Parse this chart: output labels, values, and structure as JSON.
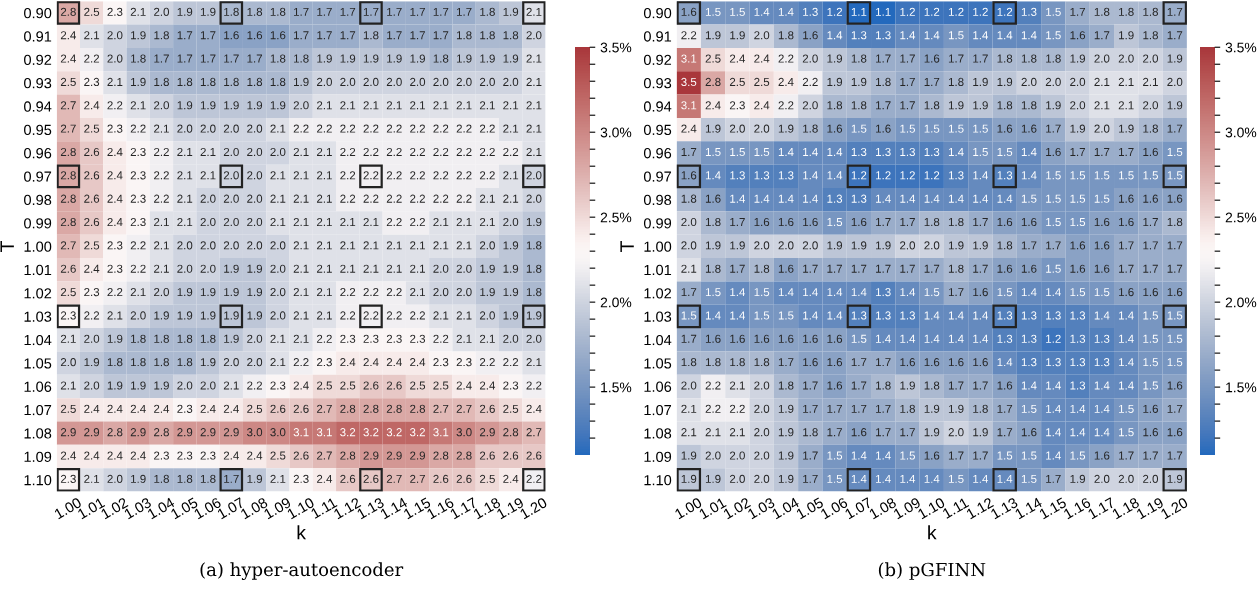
{
  "chart_data": [
    {
      "type": "heatmap",
      "xlabel": "k",
      "ylabel": "T",
      "annotations": [
        "(a) hyper-autoencoder"
      ],
      "data_labels": true,
      "categories": [
        "1.00",
        "1.01",
        "1.02",
        "1.03",
        "1.04",
        "1.05",
        "1.06",
        "1.07",
        "1.08",
        "1.09",
        "1.10",
        "1.11",
        "1.12",
        "1.13",
        "1.14",
        "1.15",
        "1.16",
        "1.17",
        "1.18",
        "1.19",
        "1.20"
      ],
      "y_categories": [
        "0.90",
        "0.91",
        "0.92",
        "0.93",
        "0.94",
        "0.95",
        "0.96",
        "0.97",
        "0.98",
        "0.99",
        "1.00",
        "1.01",
        "1.02",
        "1.03",
        "1.04",
        "1.05",
        "1.06",
        "1.07",
        "1.08",
        "1.09",
        "1.10"
      ],
      "clim": [
        1.1,
        3.5
      ],
      "cticks": [
        {
          "value": 1.2,
          "label": null
        },
        {
          "value": 1.3,
          "label": null
        },
        {
          "value": 1.4,
          "label": null
        },
        {
          "value": 1.5,
          "label": "1.5%"
        },
        {
          "value": 1.6,
          "label": null
        },
        {
          "value": 1.7,
          "label": null
        },
        {
          "value": 1.8,
          "label": null
        },
        {
          "value": 1.9,
          "label": null
        },
        {
          "value": 2.0,
          "label": "2.0%"
        },
        {
          "value": 2.1,
          "label": null
        },
        {
          "value": 2.2,
          "label": null
        },
        {
          "value": 2.3,
          "label": null
        },
        {
          "value": 2.4,
          "label": null
        },
        {
          "value": 2.5,
          "label": "2.5%"
        },
        {
          "value": 2.6,
          "label": null
        },
        {
          "value": 2.7,
          "label": null
        },
        {
          "value": 2.8,
          "label": null
        },
        {
          "value": 2.9,
          "label": null
        },
        {
          "value": 3.0,
          "label": "3.0%"
        },
        {
          "value": 3.1,
          "label": null
        },
        {
          "value": 3.2,
          "label": null
        },
        {
          "value": 3.3,
          "label": null
        },
        {
          "value": 3.4,
          "label": null
        },
        {
          "value": 3.5,
          "label": "3.5%"
        }
      ],
      "cells": [
        [
          2.8,
          2.5,
          2.3,
          2.1,
          2.0,
          1.9,
          1.9,
          1.8,
          1.8,
          1.8,
          1.7,
          1.7,
          1.7,
          1.7,
          1.7,
          1.7,
          1.7,
          1.7,
          1.8,
          1.9,
          2.1
        ],
        [
          2.4,
          2.1,
          2.0,
          1.9,
          1.8,
          1.7,
          1.7,
          1.6,
          1.6,
          1.6,
          1.7,
          1.7,
          1.7,
          1.8,
          1.7,
          1.7,
          1.7,
          1.8,
          1.8,
          1.8,
          2.0
        ],
        [
          2.4,
          2.2,
          2.0,
          1.8,
          1.7,
          1.7,
          1.7,
          1.7,
          1.7,
          1.8,
          1.8,
          1.9,
          1.9,
          1.9,
          1.9,
          1.9,
          1.8,
          1.9,
          1.9,
          1.9,
          2.1
        ],
        [
          2.5,
          2.3,
          2.1,
          1.9,
          1.8,
          1.8,
          1.8,
          1.8,
          1.8,
          1.8,
          1.9,
          2.0,
          2.0,
          2.0,
          2.0,
          2.0,
          2.0,
          2.0,
          2.0,
          2.0,
          2.1
        ],
        [
          2.7,
          2.4,
          2.2,
          2.1,
          2.0,
          1.9,
          1.9,
          1.9,
          1.9,
          1.9,
          2.0,
          2.1,
          2.1,
          2.1,
          2.1,
          2.1,
          2.1,
          2.1,
          2.1,
          2.1,
          2.1
        ],
        [
          2.7,
          2.5,
          2.3,
          2.2,
          2.1,
          2.0,
          2.0,
          2.0,
          2.0,
          2.1,
          2.2,
          2.2,
          2.2,
          2.2,
          2.2,
          2.2,
          2.2,
          2.2,
          2.2,
          2.1,
          2.1
        ],
        [
          2.8,
          2.6,
          2.4,
          2.3,
          2.2,
          2.1,
          2.1,
          2.0,
          2.0,
          2.0,
          2.1,
          2.1,
          2.2,
          2.2,
          2.2,
          2.2,
          2.2,
          2.2,
          2.2,
          2.2,
          2.1
        ],
        [
          2.8,
          2.6,
          2.4,
          2.3,
          2.2,
          2.1,
          2.1,
          2.0,
          2.0,
          2.1,
          2.1,
          2.1,
          2.2,
          2.2,
          2.2,
          2.2,
          2.2,
          2.2,
          2.2,
          2.1,
          2.0
        ],
        [
          2.8,
          2.6,
          2.4,
          2.3,
          2.2,
          2.1,
          2.0,
          2.0,
          2.0,
          2.1,
          2.1,
          2.1,
          2.2,
          2.2,
          2.2,
          2.2,
          2.2,
          2.2,
          2.1,
          2.1,
          2.0
        ],
        [
          2.8,
          2.6,
          2.4,
          2.3,
          2.1,
          2.1,
          2.0,
          2.0,
          2.0,
          2.1,
          2.1,
          2.1,
          2.1,
          2.1,
          2.2,
          2.2,
          2.1,
          2.1,
          2.1,
          2.0,
          1.9
        ],
        [
          2.7,
          2.5,
          2.3,
          2.2,
          2.1,
          2.0,
          2.0,
          2.0,
          2.0,
          2.0,
          2.1,
          2.1,
          2.1,
          2.1,
          2.1,
          2.1,
          2.1,
          2.1,
          2.0,
          1.9,
          1.8
        ],
        [
          2.6,
          2.4,
          2.3,
          2.2,
          2.1,
          2.0,
          2.0,
          1.9,
          1.9,
          2.0,
          2.1,
          2.1,
          2.1,
          2.1,
          2.1,
          2.1,
          2.0,
          2.0,
          1.9,
          1.9,
          1.8
        ],
        [
          2.5,
          2.3,
          2.2,
          2.1,
          2.0,
          1.9,
          1.9,
          1.9,
          1.9,
          2.0,
          2.1,
          2.1,
          2.2,
          2.2,
          2.2,
          2.1,
          2.0,
          2.0,
          1.9,
          1.9,
          1.8
        ],
        [
          2.3,
          2.2,
          2.1,
          2.0,
          1.9,
          1.9,
          1.9,
          1.9,
          1.9,
          2.0,
          2.1,
          2.1,
          2.2,
          2.2,
          2.2,
          2.2,
          2.1,
          2.1,
          2.0,
          1.9,
          1.9
        ],
        [
          2.1,
          2.0,
          1.9,
          1.8,
          1.8,
          1.8,
          1.8,
          1.9,
          2.0,
          2.1,
          2.1,
          2.2,
          2.3,
          2.3,
          2.3,
          2.3,
          2.2,
          2.1,
          2.1,
          2.0,
          2.0
        ],
        [
          2.0,
          1.9,
          1.8,
          1.8,
          1.8,
          1.8,
          1.9,
          2.0,
          2.0,
          2.1,
          2.2,
          2.3,
          2.4,
          2.4,
          2.4,
          2.4,
          2.3,
          2.3,
          2.2,
          2.2,
          2.1
        ],
        [
          2.1,
          2.0,
          1.9,
          1.9,
          1.9,
          2.0,
          2.0,
          2.1,
          2.2,
          2.3,
          2.4,
          2.5,
          2.5,
          2.6,
          2.6,
          2.5,
          2.5,
          2.4,
          2.4,
          2.3,
          2.2
        ],
        [
          2.5,
          2.4,
          2.4,
          2.4,
          2.4,
          2.3,
          2.4,
          2.4,
          2.5,
          2.6,
          2.6,
          2.7,
          2.8,
          2.8,
          2.8,
          2.8,
          2.7,
          2.7,
          2.6,
          2.5,
          2.4
        ],
        [
          2.9,
          2.9,
          2.8,
          2.9,
          2.8,
          2.9,
          2.9,
          2.9,
          3.0,
          3.0,
          3.1,
          3.1,
          3.2,
          3.2,
          3.2,
          3.2,
          3.1,
          3.0,
          2.9,
          2.8,
          2.7
        ],
        [
          2.4,
          2.4,
          2.4,
          2.4,
          2.3,
          2.3,
          2.3,
          2.4,
          2.4,
          2.5,
          2.6,
          2.7,
          2.8,
          2.9,
          2.9,
          2.9,
          2.8,
          2.8,
          2.6,
          2.6,
          2.6
        ],
        [
          2.3,
          2.1,
          2.0,
          1.9,
          1.8,
          1.8,
          1.8,
          1.7,
          1.9,
          2.1,
          2.3,
          2.4,
          2.6,
          2.6,
          2.7,
          2.7,
          2.6,
          2.6,
          2.5,
          2.4,
          2.2
        ]
      ],
      "cell_labels": [
        [
          "2.8",
          "2.5",
          "2.3",
          "2.1",
          "2.0",
          "1.9",
          "1.9",
          "1.8",
          "1.8",
          "1.8",
          "1.7",
          "1.7",
          "1.7",
          "1.7",
          "1.7",
          "1.7",
          "1.7",
          "1.7",
          "1.8",
          "1.9",
          "2.1"
        ],
        [
          "2.4",
          "2.1",
          "2.0",
          "1.9",
          "1.8",
          "1.7",
          "1.7",
          "1.6",
          "1.6",
          "1.6",
          "1.7",
          "1.7",
          "1.7",
          "1.8",
          "1.7",
          "1.7",
          "1.7",
          "1.8",
          "1.8",
          "1.8",
          "2.0"
        ],
        [
          "2.4",
          "2.2",
          "2.0",
          "1.8",
          "1.7",
          "1.7",
          "1.7",
          "1.7",
          "1.7",
          "1.8",
          "1.8",
          "1.9",
          "1.9",
          "1.9",
          "1.9",
          "1.9",
          "1.8",
          "1.9",
          "1.9",
          "1.9",
          "2.1"
        ],
        [
          "2.5",
          "2.3",
          "2.1",
          "1.9",
          "1.8",
          "1.8",
          "1.8",
          "1.8",
          "1.8",
          "1.8",
          "1.9",
          "2.0",
          "2.0",
          "2.0",
          "2.0",
          "2.0",
          "2.0",
          "2.0",
          "2.0",
          "2.0",
          "2.1"
        ],
        [
          "2.7",
          "2.4",
          "2.2",
          "2.1",
          "2.0",
          "1.9",
          "1.9",
          "1.9",
          "1.9",
          "1.9",
          "2.0",
          "2.1",
          "2.1",
          "2.1",
          "2.1",
          "2.1",
          "2.1",
          "2.1",
          "2.1",
          "2.1",
          "2.1"
        ],
        [
          "2.7",
          "2.5",
          "2.3",
          "2.2",
          "2.1",
          "2.0",
          "2.0",
          "2.0",
          "2.0",
          "2.1",
          "2.2",
          "2.2",
          "2.2",
          "2.2",
          "2.2",
          "2.2",
          "2.2",
          "2.2",
          "2.2",
          "2.1",
          "2.1"
        ],
        [
          "2.8",
          "2.6",
          "2.4",
          "2.3",
          "2.2",
          "2.1",
          "2.1",
          "2.0",
          "2.0",
          "2.0",
          "2.1",
          "2.1",
          "2.2",
          "2.2",
          "2.2",
          "2.2",
          "2.2",
          "2.2",
          "2.2",
          "2.2",
          "2.1"
        ],
        [
          "2.8",
          "2.6",
          "2.4",
          "2.3",
          "2.2",
          "2.1",
          "2.1",
          "2.0",
          "2.0",
          "2.1",
          "2.1",
          "2.1",
          "2.2",
          "2.2",
          "2.2",
          "2.2",
          "2.2",
          "2.2",
          "2.2",
          "2.1",
          "2.0"
        ],
        [
          "2.8",
          "2.6",
          "2.4",
          "2.3",
          "2.2",
          "2.1",
          "2.0",
          "2.0",
          "2.0",
          "2.1",
          "2.1",
          "2.1",
          "2.2",
          "2.2",
          "2.2",
          "2.2",
          "2.2",
          "2.2",
          "2.1",
          "2.1",
          "2.0"
        ],
        [
          "2.8",
          "2.6",
          "2.4",
          "2.3",
          "2.1",
          "2.1",
          "2.0",
          "2.0",
          "2.0",
          "2.1",
          "2.1",
          "2.1",
          "2.1",
          "2.1",
          "2.2",
          "2.2",
          "2.1",
          "2.1",
          "2.1",
          "2.0",
          "1.9"
        ],
        [
          "2.7",
          "2.5",
          "2.3",
          "2.2",
          "2.1",
          "2.0",
          "2.0",
          "2.0",
          "2.0",
          "2.0",
          "2.1",
          "2.1",
          "2.1",
          "2.1",
          "2.1",
          "2.1",
          "2.1",
          "2.1",
          "2.0",
          "1.9",
          "1.8"
        ],
        [
          "2.6",
          "2.4",
          "2.3",
          "2.2",
          "2.1",
          "2.0",
          "2.0",
          "1.9",
          "1.9",
          "2.0",
          "2.1",
          "2.1",
          "2.1",
          "2.1",
          "2.1",
          "2.1",
          "2.0",
          "2.0",
          "1.9",
          "1.9",
          "1.8"
        ],
        [
          "2.5",
          "2.3",
          "2.2",
          "2.1",
          "2.0",
          "1.9",
          "1.9",
          "1.9",
          "1.9",
          "2.0",
          "2.1",
          "2.1",
          "2.2",
          "2.2",
          "2.2",
          "2.1",
          "2.0",
          "2.0",
          "1.9",
          "1.9",
          "1.8"
        ],
        [
          "2.3",
          "2.2",
          "2.1",
          "2.0",
          "1.9",
          "1.9",
          "1.9",
          "1.9",
          "1.9",
          "2.0",
          "2.1",
          "2.1",
          "2.2",
          "2.2",
          "2.2",
          "2.2",
          "2.1",
          "2.1",
          "2.0",
          "1.9",
          "1.9"
        ],
        [
          "2.1",
          "2.0",
          "1.9",
          "1.8",
          "1.8",
          "1.8",
          "1.8",
          "1.9",
          "2.0",
          "2.1",
          "2.1",
          "2.2",
          "2.3",
          "2.3",
          "2.3",
          "2.3",
          "2.2",
          "2.1",
          "2.1",
          "2.0",
          "2.0"
        ],
        [
          "2.0",
          "1.9",
          "1.8",
          "1.8",
          "1.8",
          "1.8",
          "1.9",
          "2.0",
          "2.0",
          "2.1",
          "2.2",
          "2.3",
          "2.4",
          "2.4",
          "2.4",
          "2.4",
          "2.3",
          "2.3",
          "2.2",
          "2.2",
          "2.1"
        ],
        [
          "2.1",
          "2.0",
          "1.9",
          "1.9",
          "1.9",
          "2.0",
          "2.0",
          "2.1",
          "2.2",
          "2.3",
          "2.4",
          "2.5",
          "2.5",
          "2.6",
          "2.6",
          "2.5",
          "2.5",
          "2.4",
          "2.4",
          "2.3",
          "2.2"
        ],
        [
          "2.5",
          "2.4",
          "2.4",
          "2.4",
          "2.4",
          "2.3",
          "2.4",
          "2.4",
          "2.5",
          "2.6",
          "2.6",
          "2.7",
          "2.8",
          "2.8",
          "2.8",
          "2.8",
          "2.7",
          "2.7",
          "2.6",
          "2.5",
          "2.4"
        ],
        [
          "2.9",
          "2.9",
          "2.8",
          "2.9",
          "2.8",
          "2.9",
          "2.9",
          "2.9",
          "3.0",
          "3.0",
          "3.1",
          "3.1",
          "3.2",
          "3.2",
          "3.2",
          "3.2",
          "3.1",
          "3.0",
          "2.9",
          "2.8",
          "2.7"
        ],
        [
          "2.4",
          "2.4",
          "2.4",
          "2.4",
          "2.3",
          "2.3",
          "2.3",
          "2.4",
          "2.4",
          "2.5",
          "2.6",
          "2.7",
          "2.8",
          "2.9",
          "2.9",
          "2.9",
          "2.8",
          "2.8",
          "2.6",
          "2.6",
          "2.6"
        ],
        [
          "2.3",
          "2.1",
          "2.0",
          "1.9",
          "1.8",
          "1.8",
          "1.8",
          "1.7",
          "1.9",
          "2.1",
          "2.3",
          "2.4",
          "2.6",
          "2.6",
          "2.7",
          "2.7",
          "2.6",
          "2.6",
          "2.5",
          "2.4",
          "2.2"
        ]
      ]
    },
    {
      "type": "heatmap",
      "xlabel": "k",
      "ylabel": "T",
      "annotations": [
        "(b) pGFINN"
      ],
      "data_labels": true,
      "categories": [
        "1.00",
        "1.01",
        "1.02",
        "1.03",
        "1.04",
        "1.05",
        "1.06",
        "1.07",
        "1.08",
        "1.09",
        "1.10",
        "1.11",
        "1.12",
        "1.13",
        "1.14",
        "1.15",
        "1.16",
        "1.17",
        "1.18",
        "1.19",
        "1.20"
      ],
      "y_categories": [
        "0.90",
        "0.91",
        "0.92",
        "0.93",
        "0.94",
        "0.95",
        "0.96",
        "0.97",
        "0.98",
        "0.99",
        "1.00",
        "1.01",
        "1.02",
        "1.03",
        "1.04",
        "1.05",
        "1.06",
        "1.07",
        "1.08",
        "1.09",
        "1.10"
      ],
      "clim": [
        1.1,
        3.5
      ],
      "cticks": [
        {
          "value": 1.2,
          "label": null
        },
        {
          "value": 1.3,
          "label": null
        },
        {
          "value": 1.4,
          "label": null
        },
        {
          "value": 1.5,
          "label": "1.5%"
        },
        {
          "value": 1.6,
          "label": null
        },
        {
          "value": 1.7,
          "label": null
        },
        {
          "value": 1.8,
          "label": null
        },
        {
          "value": 1.9,
          "label": null
        },
        {
          "value": 2.0,
          "label": "2.0%"
        },
        {
          "value": 2.1,
          "label": null
        },
        {
          "value": 2.2,
          "label": null
        },
        {
          "value": 2.3,
          "label": null
        },
        {
          "value": 2.4,
          "label": null
        },
        {
          "value": 2.5,
          "label": "2.5%"
        },
        {
          "value": 2.6,
          "label": null
        },
        {
          "value": 2.7,
          "label": null
        },
        {
          "value": 2.8,
          "label": null
        },
        {
          "value": 2.9,
          "label": null
        },
        {
          "value": 3.0,
          "label": "3.0%"
        },
        {
          "value": 3.1,
          "label": null
        },
        {
          "value": 3.2,
          "label": null
        },
        {
          "value": 3.3,
          "label": null
        },
        {
          "value": 3.4,
          "label": null
        },
        {
          "value": 3.5,
          "label": "3.5%"
        }
      ],
      "cells": [
        [
          1.6,
          1.5,
          1.5,
          1.4,
          1.4,
          1.3,
          1.2,
          1.1,
          1.1,
          1.2,
          1.2,
          1.2,
          1.2,
          1.2,
          1.3,
          1.5,
          1.7,
          1.8,
          1.8,
          1.8,
          1.7
        ],
        [
          2.2,
          1.9,
          1.9,
          2.0,
          1.8,
          1.6,
          1.4,
          1.3,
          1.3,
          1.4,
          1.4,
          1.5,
          1.4,
          1.4,
          1.4,
          1.5,
          1.6,
          1.7,
          1.9,
          1.8,
          1.7
        ],
        [
          3.1,
          2.5,
          2.4,
          2.4,
          2.2,
          2.0,
          1.9,
          1.8,
          1.7,
          1.7,
          1.6,
          1.7,
          1.7,
          1.8,
          1.8,
          1.8,
          1.9,
          2.0,
          2.0,
          2.0,
          1.9
        ],
        [
          3.5,
          2.8,
          2.5,
          2.5,
          2.4,
          2.2,
          1.9,
          1.9,
          1.8,
          1.7,
          1.7,
          1.8,
          1.9,
          1.9,
          2.0,
          2.0,
          2.0,
          2.1,
          2.1,
          2.1,
          2.0
        ],
        [
          3.1,
          2.4,
          2.3,
          2.4,
          2.2,
          2.0,
          1.8,
          1.8,
          1.7,
          1.7,
          1.8,
          1.9,
          1.9,
          1.8,
          1.8,
          1.9,
          2.0,
          2.1,
          2.1,
          2.0,
          1.9
        ],
        [
          2.4,
          1.9,
          2.0,
          2.0,
          1.9,
          1.8,
          1.6,
          1.5,
          1.6,
          1.5,
          1.5,
          1.5,
          1.5,
          1.6,
          1.6,
          1.7,
          1.9,
          2.0,
          1.9,
          1.8,
          1.7
        ],
        [
          1.7,
          1.5,
          1.5,
          1.5,
          1.4,
          1.4,
          1.4,
          1.3,
          1.3,
          1.3,
          1.3,
          1.4,
          1.5,
          1.5,
          1.4,
          1.6,
          1.7,
          1.7,
          1.7,
          1.6,
          1.5
        ],
        [
          1.6,
          1.4,
          1.3,
          1.3,
          1.3,
          1.4,
          1.4,
          1.2,
          1.2,
          1.2,
          1.2,
          1.3,
          1.4,
          1.3,
          1.4,
          1.5,
          1.5,
          1.5,
          1.5,
          1.5,
          1.5
        ],
        [
          1.8,
          1.6,
          1.4,
          1.4,
          1.4,
          1.4,
          1.3,
          1.3,
          1.4,
          1.4,
          1.4,
          1.4,
          1.4,
          1.4,
          1.5,
          1.5,
          1.5,
          1.5,
          1.6,
          1.6,
          1.6
        ],
        [
          2.0,
          1.8,
          1.7,
          1.6,
          1.6,
          1.6,
          1.5,
          1.6,
          1.7,
          1.7,
          1.8,
          1.8,
          1.7,
          1.6,
          1.6,
          1.5,
          1.5,
          1.6,
          1.6,
          1.7,
          1.8
        ],
        [
          2.0,
          1.9,
          1.9,
          2.0,
          2.0,
          2.0,
          1.9,
          1.9,
          1.9,
          2.0,
          2.0,
          1.9,
          1.9,
          1.8,
          1.7,
          1.7,
          1.6,
          1.6,
          1.7,
          1.7,
          1.7
        ],
        [
          2.1,
          1.8,
          1.7,
          1.8,
          1.6,
          1.7,
          1.7,
          1.7,
          1.7,
          1.7,
          1.7,
          1.8,
          1.7,
          1.6,
          1.6,
          1.5,
          1.6,
          1.6,
          1.7,
          1.7,
          1.7
        ],
        [
          1.7,
          1.5,
          1.4,
          1.5,
          1.4,
          1.4,
          1.4,
          1.4,
          1.3,
          1.4,
          1.5,
          1.7,
          1.6,
          1.5,
          1.4,
          1.4,
          1.5,
          1.5,
          1.6,
          1.6,
          1.6
        ],
        [
          1.5,
          1.4,
          1.4,
          1.5,
          1.5,
          1.4,
          1.4,
          1.3,
          1.3,
          1.3,
          1.4,
          1.4,
          1.4,
          1.3,
          1.3,
          1.3,
          1.3,
          1.4,
          1.4,
          1.5,
          1.5
        ],
        [
          1.7,
          1.6,
          1.6,
          1.6,
          1.6,
          1.6,
          1.6,
          1.5,
          1.4,
          1.4,
          1.4,
          1.4,
          1.4,
          1.3,
          1.3,
          1.2,
          1.3,
          1.3,
          1.4,
          1.5,
          1.5
        ],
        [
          1.8,
          1.8,
          1.8,
          1.8,
          1.7,
          1.6,
          1.6,
          1.7,
          1.7,
          1.6,
          1.6,
          1.6,
          1.6,
          1.4,
          1.3,
          1.3,
          1.3,
          1.3,
          1.4,
          1.5,
          1.5
        ],
        [
          2.0,
          2.2,
          2.1,
          2.0,
          1.8,
          1.7,
          1.6,
          1.7,
          1.8,
          1.9,
          1.8,
          1.7,
          1.7,
          1.6,
          1.4,
          1.4,
          1.3,
          1.4,
          1.4,
          1.5,
          1.6
        ],
        [
          2.1,
          2.2,
          2.2,
          2.0,
          1.9,
          1.7,
          1.7,
          1.7,
          1.7,
          1.8,
          1.9,
          1.9,
          1.8,
          1.7,
          1.5,
          1.4,
          1.4,
          1.4,
          1.5,
          1.6,
          1.7
        ],
        [
          2.1,
          2.1,
          2.1,
          2.0,
          1.9,
          1.8,
          1.7,
          1.6,
          1.7,
          1.7,
          1.9,
          2.0,
          1.9,
          1.7,
          1.6,
          1.4,
          1.4,
          1.4,
          1.5,
          1.6,
          1.6
        ],
        [
          1.9,
          2.0,
          2.0,
          2.0,
          1.9,
          1.7,
          1.5,
          1.4,
          1.4,
          1.5,
          1.6,
          1.7,
          1.7,
          1.5,
          1.5,
          1.4,
          1.5,
          1.6,
          1.7,
          1.7,
          1.7
        ],
        [
          1.9,
          1.9,
          2.0,
          2.0,
          1.9,
          1.7,
          1.5,
          1.4,
          1.4,
          1.4,
          1.4,
          1.5,
          1.4,
          1.4,
          1.5,
          1.7,
          1.9,
          2.0,
          2.0,
          2.0,
          1.9
        ]
      ],
      "cell_labels": [
        [
          "1.6",
          "1.5",
          "1.5",
          "1.4",
          "1.4",
          "1.3",
          "1.2",
          "1.1",
          "1.1",
          "1.2",
          "1.2",
          "1.2",
          "1.2",
          "1.2",
          "1.3",
          "1.5",
          "1.7",
          "1.8",
          "1.8",
          "1.8",
          "1.7"
        ],
        [
          "2.2",
          "1.9",
          "1.9",
          "2.0",
          "1.8",
          "1.6",
          "1.4",
          "1.3",
          "1.3",
          "1.4",
          "1.4",
          "1.5",
          "1.4",
          "1.4",
          "1.4",
          "1.5",
          "1.6",
          "1.7",
          "1.9",
          "1.8",
          "1.7"
        ],
        [
          "3.1",
          "2.5",
          "2.4",
          "2.4",
          "2.2",
          "2.0",
          "1.9",
          "1.8",
          "1.7",
          "1.7",
          "1.6",
          "1.7",
          "1.7",
          "1.8",
          "1.8",
          "1.8",
          "1.9",
          "2.0",
          "2.0",
          "2.0",
          "1.9"
        ],
        [
          "3.5",
          "2.8",
          "2.5",
          "2.5",
          "2.4",
          "2.2",
          "1.9",
          "1.9",
          "1.8",
          "1.7",
          "1.7",
          "1.8",
          "1.9",
          "1.9",
          "2.0",
          "2.0",
          "2.0",
          "2.1",
          "2.1",
          "2.1",
          "2.0"
        ],
        [
          "3.1",
          "2.4",
          "2.3",
          "2.4",
          "2.2",
          "2.0",
          "1.8",
          "1.8",
          "1.7",
          "1.7",
          "1.8",
          "1.9",
          "1.9",
          "1.8",
          "1.8",
          "1.9",
          "2.0",
          "2.1",
          "2.1",
          "2.0",
          "1.9"
        ],
        [
          "2.4",
          "1.9",
          "2.0",
          "2.0",
          "1.9",
          "1.8",
          "1.6",
          "1.5",
          "1.6",
          "1.5",
          "1.5",
          "1.5",
          "1.5",
          "1.6",
          "1.6",
          "1.7",
          "1.9",
          "2.0",
          "1.9",
          "1.8",
          "1.7"
        ],
        [
          "1.7",
          "1.5",
          "1.5",
          "1.5",
          "1.4",
          "1.4",
          "1.4",
          "1.3",
          "1.3",
          "1.3",
          "1.3",
          "1.4",
          "1.5",
          "1.5",
          "1.4",
          "1.6",
          "1.7",
          "1.7",
          "1.7",
          "1.6",
          "1.5"
        ],
        [
          "1.6",
          "1.4",
          "1.3",
          "1.3",
          "1.3",
          "1.4",
          "1.4",
          "1.2",
          "1.2",
          "1.2",
          "1.2",
          "1.3",
          "1.4",
          "1.3",
          "1.4",
          "1.5",
          "1.5",
          "1.5",
          "1.5",
          "1.5",
          "1.5"
        ],
        [
          "1.8",
          "1.6",
          "1.4",
          "1.4",
          "1.4",
          "1.4",
          "1.3",
          "1.3",
          "1.4",
          "1.4",
          "1.4",
          "1.4",
          "1.4",
          "1.4",
          "1.5",
          "1.5",
          "1.5",
          "1.5",
          "1.6",
          "1.6",
          "1.6"
        ],
        [
          "2.0",
          "1.8",
          "1.7",
          "1.6",
          "1.6",
          "1.6",
          "1.5",
          "1.6",
          "1.7",
          "1.7",
          "1.8",
          "1.8",
          "1.7",
          "1.6",
          "1.6",
          "1.5",
          "1.5",
          "1.6",
          "1.6",
          "1.7",
          "1.8"
        ],
        [
          "2.0",
          "1.9",
          "1.9",
          "2.0",
          "2.0",
          "2.0",
          "1.9",
          "1.9",
          "1.9",
          "2.0",
          "2.0",
          "1.9",
          "1.9",
          "1.8",
          "1.7",
          "1.7",
          "1.6",
          "1.6",
          "1.7",
          "1.7",
          "1.7"
        ],
        [
          "2.1",
          "1.8",
          "1.7",
          "1.8",
          "1.6",
          "1.7",
          "1.7",
          "1.7",
          "1.7",
          "1.7",
          "1.7",
          "1.8",
          "1.7",
          "1.6",
          "1.6",
          "1.5",
          "1.6",
          "1.6",
          "1.7",
          "1.7",
          "1.7"
        ],
        [
          "1.7",
          "1.5",
          "1.4",
          "1.5",
          "1.4",
          "1.4",
          "1.4",
          "1.4",
          "1.3",
          "1.4",
          "1.5",
          "1.7",
          "1.6",
          "1.5",
          "1.4",
          "1.4",
          "1.5",
          "1.5",
          "1.6",
          "1.6",
          "1.6"
        ],
        [
          "1.5",
          "1.4",
          "1.4",
          "1.5",
          "1.5",
          "1.4",
          "1.4",
          "1.3",
          "1.3",
          "1.3",
          "1.4",
          "1.4",
          "1.4",
          "1.3",
          "1.3",
          "1.3",
          "1.3",
          "1.4",
          "1.4",
          "1.5",
          "1.5"
        ],
        [
          "1.7",
          "1.6",
          "1.6",
          "1.6",
          "1.6",
          "1.6",
          "1.6",
          "1.5",
          "1.4",
          "1.4",
          "1.4",
          "1.4",
          "1.4",
          "1.3",
          "1.3",
          "1.2",
          "1.3",
          "1.3",
          "1.4",
          "1.5",
          "1.5"
        ],
        [
          "1.8",
          "1.8",
          "1.8",
          "1.8",
          "1.7",
          "1.6",
          "1.6",
          "1.7",
          "1.7",
          "1.6",
          "1.6",
          "1.6",
          "1.6",
          "1.4",
          "1.3",
          "1.3",
          "1.3",
          "1.3",
          "1.4",
          "1.5",
          "1.5"
        ],
        [
          "2.0",
          "2.2",
          "2.1",
          "2.0",
          "1.8",
          "1.7",
          "1.6",
          "1.7",
          "1.8",
          "1.9",
          "1.8",
          "1.7",
          "1.7",
          "1.6",
          "1.4",
          "1.4",
          "1.3",
          "1.4",
          "1.4",
          "1.5",
          "1.6"
        ],
        [
          "2.1",
          "2.2",
          "2.2",
          "2.0",
          "1.9",
          "1.7",
          "1.7",
          "1.7",
          "1.7",
          "1.8",
          "1.9",
          "1.9",
          "1.8",
          "1.7",
          "1.5",
          "1.4",
          "1.4",
          "1.4",
          "1.5",
          "1.6",
          "1.7"
        ],
        [
          "2.1",
          "2.1",
          "2.1",
          "2.0",
          "1.9",
          "1.8",
          "1.7",
          "1.6",
          "1.7",
          "1.7",
          "1.9",
          "2.0",
          "1.9",
          "1.7",
          "1.6",
          "1.4",
          "1.4",
          "1.4",
          "1.5",
          "1.6",
          "1.6"
        ],
        [
          "1.9",
          "2.0",
          "2.0",
          "2.0",
          "1.9",
          "1.7",
          "1.5",
          "1.4",
          "1.4",
          "1.5",
          "1.6",
          "1.7",
          "1.7",
          "1.5",
          "1.5",
          "1.4",
          "1.5",
          "1.6",
          "1.7",
          "1.7",
          "1.7"
        ],
        [
          "1.9",
          "1.9",
          "2.0",
          "2.0",
          "1.9",
          "1.7",
          "1.5",
          "1.4",
          "1.4",
          "1.4",
          "1.4",
          "1.5",
          "1.4",
          "1.4",
          "1.5",
          "1.7",
          "1.9",
          "2.0",
          "2.0",
          "2.0",
          "1.9"
        ]
      ]
    }
  ]
}
